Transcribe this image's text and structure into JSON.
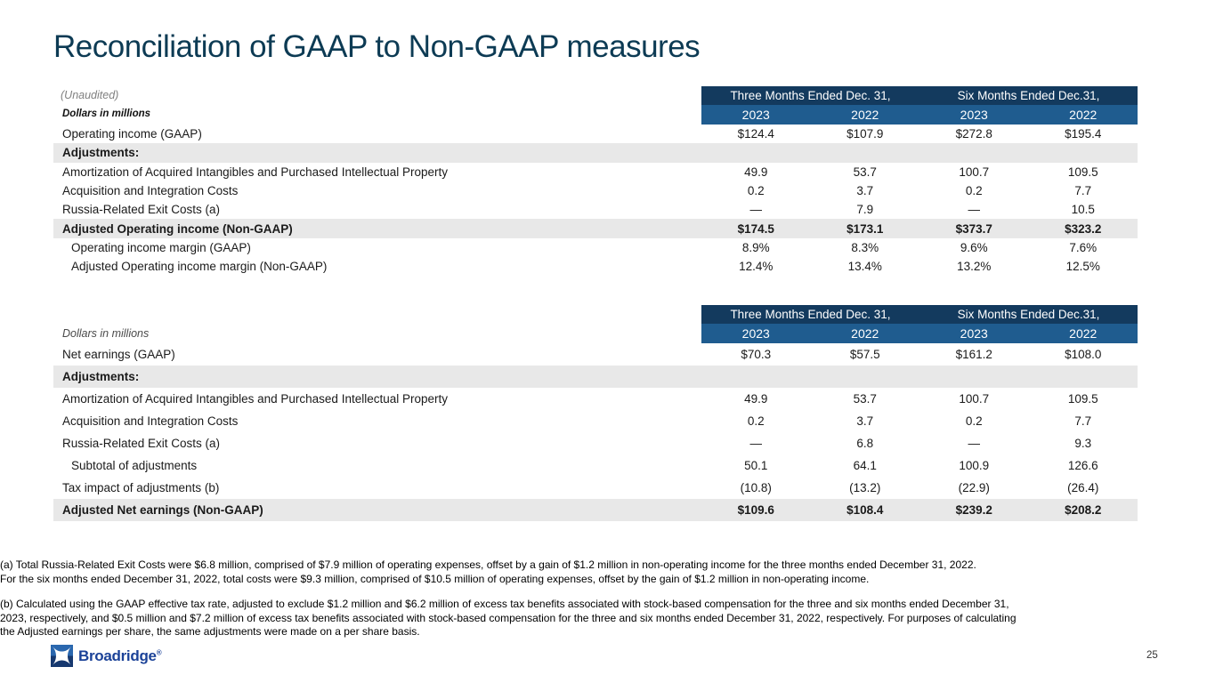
{
  "page": {
    "title": "Reconciliation of GAAP to Non-GAAP measures",
    "page_number": "25"
  },
  "colors": {
    "title_text": "#0d3b54",
    "header_dark_band": "#133a5e",
    "header_year_band": "#1f5c8f",
    "highlight_row_gray": "#e8e8e8",
    "logo_blue": "#1b4298"
  },
  "header": {
    "groups": [
      "Three Months Ended Dec. 31,",
      "Six Months Ended Dec.31,"
    ],
    "years": [
      "2023",
      "2022",
      "2023",
      "2022"
    ]
  },
  "table1": {
    "unaudited": "(Unaudited)",
    "dollars_label": "Dollars in millions",
    "rows": [
      {
        "label": "Operating income (GAAP)",
        "values": [
          "$124.4",
          "$107.9",
          "$272.8",
          "$195.4"
        ],
        "style": "normal"
      },
      {
        "label": "Adjustments:",
        "values": [
          "",
          "",
          "",
          ""
        ],
        "style": "section"
      },
      {
        "label": "Amortization of Acquired Intangibles and Purchased Intellectual Property",
        "values": [
          "49.9",
          "53.7",
          "100.7",
          "109.5"
        ],
        "style": "normal"
      },
      {
        "label": "Acquisition and Integration Costs",
        "values": [
          "0.2",
          "3.7",
          "0.2",
          "7.7"
        ],
        "style": "normal"
      },
      {
        "label": "Russia-Related Exit Costs (a)",
        "values": [
          "—",
          "7.9",
          "—",
          "10.5"
        ],
        "style": "normal"
      },
      {
        "label": "Adjusted Operating income (Non-GAAP)",
        "values": [
          "$174.5",
          "$173.1",
          "$373.7",
          "$323.2"
        ],
        "style": "total"
      },
      {
        "label": "Operating income margin (GAAP)",
        "values": [
          "8.9%",
          "8.3%",
          "9.6%",
          "7.6%"
        ],
        "style": "indent"
      },
      {
        "label": "Adjusted Operating income margin (Non-GAAP)",
        "values": [
          "12.4%",
          "13.4%",
          "13.2%",
          "12.5%"
        ],
        "style": "indent"
      }
    ]
  },
  "table2": {
    "dollars_label": "Dollars in millions",
    "rows": [
      {
        "label": "Net earnings (GAAP)",
        "values": [
          "$70.3",
          "$57.5",
          "$161.2",
          "$108.0"
        ],
        "style": "normal"
      },
      {
        "label": "Adjustments:",
        "values": [
          "",
          "",
          "",
          ""
        ],
        "style": "section"
      },
      {
        "label": "Amortization of Acquired Intangibles and Purchased Intellectual Property",
        "values": [
          "49.9",
          "53.7",
          "100.7",
          "109.5"
        ],
        "style": "normal"
      },
      {
        "label": "Acquisition and Integration Costs",
        "values": [
          "0.2",
          "3.7",
          "0.2",
          "7.7"
        ],
        "style": "normal"
      },
      {
        "label": "Russia-Related Exit Costs (a)",
        "values": [
          "—",
          "6.8",
          "—",
          "9.3"
        ],
        "style": "normal"
      },
      {
        "label": "Subtotal of adjustments",
        "values": [
          "50.1",
          "64.1",
          "100.9",
          "126.6"
        ],
        "style": "indent"
      },
      {
        "label": "Tax impact of adjustments (b)",
        "values": [
          "(10.8)",
          "(13.2)",
          "(22.9)",
          "(26.4)"
        ],
        "style": "normal"
      },
      {
        "label": "Adjusted Net earnings (Non-GAAP)",
        "values": [
          "$109.6",
          "$108.4",
          "$239.2",
          "$208.2"
        ],
        "style": "total"
      }
    ]
  },
  "footnotes": [
    {
      "lines": [
        "(a) Total Russia-Related Exit Costs were $6.8 million, comprised of $7.9 million of operating expenses, offset by a gain of $1.2 million in non-operating income for the three months ended December 31, 2022.",
        "For the six months ended December 31, 2022, total costs were $9.3 million, comprised of $10.5 million of operating expenses, offset by the gain of $1.2 million in non-operating income."
      ]
    },
    {
      "lines": [
        "(b) Calculated using the GAAP effective tax rate, adjusted to exclude $1.2 million and $6.2 million of excess tax benefits associated with stock-based compensation for the three and six months ended December 31,",
        "2023, respectively, and $0.5 million and $7.2 million of excess tax benefits associated with stock-based compensation for the three and six months ended December 31, 2022, respectively. For purposes of calculating",
        "the Adjusted earnings per share, the same adjustments were made on a per share basis."
      ]
    }
  ],
  "logo": {
    "name": "Broadridge",
    "registered": "®"
  }
}
